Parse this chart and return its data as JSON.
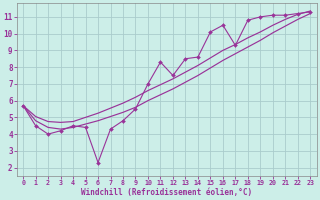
{
  "xlabel": "Windchill (Refroidissement éolien,°C)",
  "bg_color": "#cceee8",
  "grid_color": "#aacccc",
  "line_color": "#993399",
  "x_data": [
    0,
    1,
    2,
    3,
    4,
    5,
    6,
    7,
    8,
    9,
    10,
    11,
    12,
    13,
    14,
    15,
    16,
    17,
    18,
    19,
    20,
    21,
    22,
    23
  ],
  "line_jagged": [
    5.7,
    4.5,
    4.0,
    4.2,
    4.5,
    4.4,
    2.3,
    4.3,
    4.8,
    5.5,
    7.0,
    8.3,
    7.5,
    8.5,
    8.6,
    10.1,
    10.5,
    9.3,
    10.8,
    11.0,
    11.1,
    11.1,
    11.2,
    11.3
  ],
  "line_low": [
    5.7,
    4.8,
    4.4,
    4.3,
    4.4,
    4.6,
    4.8,
    5.05,
    5.3,
    5.6,
    6.0,
    6.35,
    6.7,
    7.1,
    7.5,
    7.95,
    8.4,
    8.8,
    9.2,
    9.6,
    10.05,
    10.45,
    10.85,
    11.2
  ],
  "line_high": [
    5.7,
    5.05,
    4.75,
    4.7,
    4.75,
    5.0,
    5.25,
    5.55,
    5.85,
    6.2,
    6.6,
    6.95,
    7.3,
    7.7,
    8.1,
    8.55,
    9.0,
    9.35,
    9.75,
    10.1,
    10.5,
    10.85,
    11.15,
    11.35
  ],
  "xlim": [
    -0.5,
    23.5
  ],
  "ylim": [
    1.5,
    11.8
  ],
  "yticks": [
    2,
    3,
    4,
    5,
    6,
    7,
    8,
    9,
    10,
    11
  ],
  "xticks": [
    0,
    1,
    2,
    3,
    4,
    5,
    6,
    7,
    8,
    9,
    10,
    11,
    12,
    13,
    14,
    15,
    16,
    17,
    18,
    19,
    20,
    21,
    22,
    23
  ]
}
